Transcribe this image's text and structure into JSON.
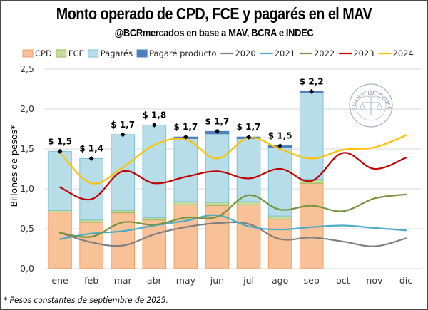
{
  "header": {
    "title": "Monto operado de CPD, FCE y pagarés en el MAV",
    "subtitle": "@BCRmercados en base a MAV, BCRA e INDEC"
  },
  "footnote": "* Pesos constantes de septiembre de 2025.",
  "watermark": {
    "icon": "bolsa-de-comercio-seal-icon",
    "text": "BOLSA DE COMERCIO DE ROSARIO"
  },
  "colors": {
    "cpd": "#f8c198",
    "cpd_border": "#f0a060",
    "fce": "#c5dc9f",
    "fce_border": "#9bbb59",
    "pagares": "#b7dde8",
    "pagares_border": "#7fc3d6",
    "pagare_producto": "#4f81bd",
    "y2020": "#808080",
    "y2021": "#4bacc6",
    "y2022": "#77933c",
    "y2023": "#c00000",
    "y2024": "#ffc000",
    "grid": "#d9d9d9",
    "marker": "#000000"
  },
  "chart_data": {
    "type": "bar",
    "subtype": "stacked bar with line overlays",
    "title": "Monto operado de CPD, FCE y pagarés en el MAV",
    "subtitle": "@BCRmercados en base a MAV, BCRA e INDEC",
    "xlabel": "",
    "ylabel": "Billones de pesos*",
    "ylim": [
      0,
      2.5
    ],
    "yticks": [
      0,
      0.5,
      1.0,
      1.5,
      2.0,
      2.5
    ],
    "ytick_labels": [
      "0,0",
      "0,5",
      "1,0",
      "1,5",
      "2,0",
      "2,5"
    ],
    "grid": true,
    "legend_position": "top",
    "categories": [
      "ene",
      "feb",
      "mar",
      "abr",
      "may",
      "jun",
      "jul",
      "ago",
      "sep",
      "oct",
      "nov",
      "dic"
    ],
    "stacked_series": [
      {
        "name": "CPD",
        "key": "cpd",
        "values": [
          0.71,
          0.58,
          0.7,
          0.61,
          0.8,
          0.79,
          0.8,
          0.62,
          1.07,
          null,
          null,
          null
        ]
      },
      {
        "name": "FCE",
        "key": "fce",
        "values": [
          0.02,
          0.03,
          0.03,
          0.03,
          0.04,
          0.04,
          0.04,
          0.04,
          0.05,
          null,
          null,
          null
        ]
      },
      {
        "name": "Pagarés",
        "key": "pagares",
        "values": [
          0.74,
          0.77,
          0.95,
          1.16,
          0.79,
          0.86,
          0.79,
          0.86,
          1.09,
          null,
          null,
          null
        ]
      },
      {
        "name": "Pagaré producto",
        "key": "pagare_producto",
        "values": [
          0.0,
          0.0,
          0.0,
          0.0,
          0.02,
          0.03,
          0.02,
          0.02,
          0.01,
          null,
          null,
          null
        ]
      }
    ],
    "totals": [
      1.47,
      1.38,
      1.68,
      1.8,
      1.65,
      1.72,
      1.65,
      1.54,
      2.22,
      null,
      null,
      null
    ],
    "total_labels": [
      "$ 1,5",
      "$ 1,4",
      "$ 1,7",
      "$ 1,8",
      "$ 1,7",
      "$ 1,7",
      "$ 1,7",
      "$ 1,5",
      "$ 2,2",
      null,
      null,
      null
    ],
    "line_series": [
      {
        "name": "2020",
        "key": "y2020",
        "values": [
          0.45,
          0.33,
          0.29,
          0.43,
          0.52,
          0.57,
          0.56,
          0.37,
          0.39,
          0.34,
          0.28,
          0.38
        ]
      },
      {
        "name": "2021",
        "key": "y2021",
        "values": [
          0.37,
          0.44,
          0.47,
          0.54,
          0.6,
          0.67,
          0.53,
          0.49,
          0.52,
          0.54,
          0.51,
          0.48
        ]
      },
      {
        "name": "2022",
        "key": "y2022",
        "values": [
          0.45,
          0.4,
          0.58,
          0.55,
          0.64,
          0.65,
          0.92,
          0.74,
          0.79,
          0.72,
          0.88,
          0.93
        ]
      },
      {
        "name": "2023",
        "key": "y2023",
        "values": [
          1.02,
          0.87,
          1.22,
          1.07,
          1.15,
          1.22,
          1.13,
          1.25,
          1.1,
          1.45,
          1.25,
          1.39
        ]
      },
      {
        "name": "2024",
        "key": "y2024",
        "values": [
          1.46,
          1.07,
          1.27,
          1.55,
          1.62,
          1.38,
          1.64,
          1.5,
          1.38,
          1.49,
          1.52,
          1.67
        ]
      }
    ],
    "legend": [
      {
        "label": "CPD",
        "type": "box",
        "key": "cpd"
      },
      {
        "label": "FCE",
        "type": "box",
        "key": "fce"
      },
      {
        "label": "Pagarés",
        "type": "box",
        "key": "pagares"
      },
      {
        "label": "Pagaré producto",
        "type": "box",
        "key": "pagare_producto"
      },
      {
        "label": "2020",
        "type": "line",
        "key": "y2020"
      },
      {
        "label": "2021",
        "type": "line",
        "key": "y2021"
      },
      {
        "label": "2022",
        "type": "line",
        "key": "y2022"
      },
      {
        "label": "2023",
        "type": "line",
        "key": "y2023"
      },
      {
        "label": "2024",
        "type": "line",
        "key": "y2024"
      }
    ]
  }
}
